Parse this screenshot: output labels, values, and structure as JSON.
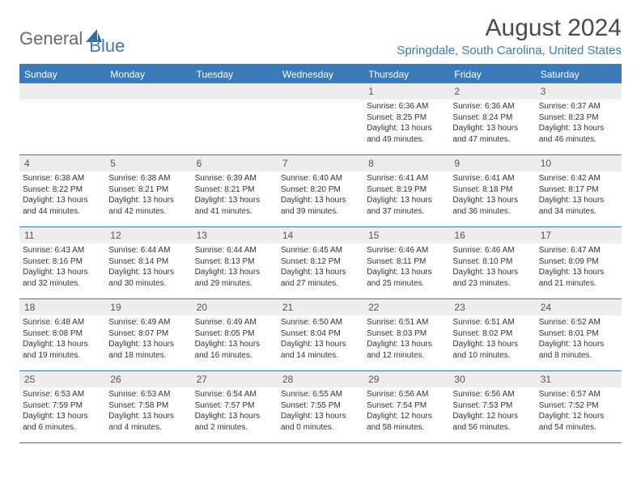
{
  "brand": {
    "part1": "General",
    "part2": "Blue"
  },
  "title": "August 2024",
  "location": "Springdale, South Carolina, United States",
  "colors": {
    "accent": "#3a7ab8",
    "header_bg": "#3a7ab8",
    "daynum_bg": "#ededed",
    "text": "#333333",
    "title_text": "#4a4a4a",
    "logo_grey": "#6a6a6a"
  },
  "weekdays": [
    "Sunday",
    "Monday",
    "Tuesday",
    "Wednesday",
    "Thursday",
    "Friday",
    "Saturday"
  ],
  "weeks": [
    [
      {
        "n": "",
        "sr": "",
        "ss": "",
        "dl": ""
      },
      {
        "n": "",
        "sr": "",
        "ss": "",
        "dl": ""
      },
      {
        "n": "",
        "sr": "",
        "ss": "",
        "dl": ""
      },
      {
        "n": "",
        "sr": "",
        "ss": "",
        "dl": ""
      },
      {
        "n": "1",
        "sr": "Sunrise: 6:36 AM",
        "ss": "Sunset: 8:25 PM",
        "dl": "Daylight: 13 hours and 49 minutes."
      },
      {
        "n": "2",
        "sr": "Sunrise: 6:36 AM",
        "ss": "Sunset: 8:24 PM",
        "dl": "Daylight: 13 hours and 47 minutes."
      },
      {
        "n": "3",
        "sr": "Sunrise: 6:37 AM",
        "ss": "Sunset: 8:23 PM",
        "dl": "Daylight: 13 hours and 46 minutes."
      }
    ],
    [
      {
        "n": "4",
        "sr": "Sunrise: 6:38 AM",
        "ss": "Sunset: 8:22 PM",
        "dl": "Daylight: 13 hours and 44 minutes."
      },
      {
        "n": "5",
        "sr": "Sunrise: 6:38 AM",
        "ss": "Sunset: 8:21 PM",
        "dl": "Daylight: 13 hours and 42 minutes."
      },
      {
        "n": "6",
        "sr": "Sunrise: 6:39 AM",
        "ss": "Sunset: 8:21 PM",
        "dl": "Daylight: 13 hours and 41 minutes."
      },
      {
        "n": "7",
        "sr": "Sunrise: 6:40 AM",
        "ss": "Sunset: 8:20 PM",
        "dl": "Daylight: 13 hours and 39 minutes."
      },
      {
        "n": "8",
        "sr": "Sunrise: 6:41 AM",
        "ss": "Sunset: 8:19 PM",
        "dl": "Daylight: 13 hours and 37 minutes."
      },
      {
        "n": "9",
        "sr": "Sunrise: 6:41 AM",
        "ss": "Sunset: 8:18 PM",
        "dl": "Daylight: 13 hours and 36 minutes."
      },
      {
        "n": "10",
        "sr": "Sunrise: 6:42 AM",
        "ss": "Sunset: 8:17 PM",
        "dl": "Daylight: 13 hours and 34 minutes."
      }
    ],
    [
      {
        "n": "11",
        "sr": "Sunrise: 6:43 AM",
        "ss": "Sunset: 8:16 PM",
        "dl": "Daylight: 13 hours and 32 minutes."
      },
      {
        "n": "12",
        "sr": "Sunrise: 6:44 AM",
        "ss": "Sunset: 8:14 PM",
        "dl": "Daylight: 13 hours and 30 minutes."
      },
      {
        "n": "13",
        "sr": "Sunrise: 6:44 AM",
        "ss": "Sunset: 8:13 PM",
        "dl": "Daylight: 13 hours and 29 minutes."
      },
      {
        "n": "14",
        "sr": "Sunrise: 6:45 AM",
        "ss": "Sunset: 8:12 PM",
        "dl": "Daylight: 13 hours and 27 minutes."
      },
      {
        "n": "15",
        "sr": "Sunrise: 6:46 AM",
        "ss": "Sunset: 8:11 PM",
        "dl": "Daylight: 13 hours and 25 minutes."
      },
      {
        "n": "16",
        "sr": "Sunrise: 6:46 AM",
        "ss": "Sunset: 8:10 PM",
        "dl": "Daylight: 13 hours and 23 minutes."
      },
      {
        "n": "17",
        "sr": "Sunrise: 6:47 AM",
        "ss": "Sunset: 8:09 PM",
        "dl": "Daylight: 13 hours and 21 minutes."
      }
    ],
    [
      {
        "n": "18",
        "sr": "Sunrise: 6:48 AM",
        "ss": "Sunset: 8:08 PM",
        "dl": "Daylight: 13 hours and 19 minutes."
      },
      {
        "n": "19",
        "sr": "Sunrise: 6:49 AM",
        "ss": "Sunset: 8:07 PM",
        "dl": "Daylight: 13 hours and 18 minutes."
      },
      {
        "n": "20",
        "sr": "Sunrise: 6:49 AM",
        "ss": "Sunset: 8:05 PM",
        "dl": "Daylight: 13 hours and 16 minutes."
      },
      {
        "n": "21",
        "sr": "Sunrise: 6:50 AM",
        "ss": "Sunset: 8:04 PM",
        "dl": "Daylight: 13 hours and 14 minutes."
      },
      {
        "n": "22",
        "sr": "Sunrise: 6:51 AM",
        "ss": "Sunset: 8:03 PM",
        "dl": "Daylight: 13 hours and 12 minutes."
      },
      {
        "n": "23",
        "sr": "Sunrise: 6:51 AM",
        "ss": "Sunset: 8:02 PM",
        "dl": "Daylight: 13 hours and 10 minutes."
      },
      {
        "n": "24",
        "sr": "Sunrise: 6:52 AM",
        "ss": "Sunset: 8:01 PM",
        "dl": "Daylight: 13 hours and 8 minutes."
      }
    ],
    [
      {
        "n": "25",
        "sr": "Sunrise: 6:53 AM",
        "ss": "Sunset: 7:59 PM",
        "dl": "Daylight: 13 hours and 6 minutes."
      },
      {
        "n": "26",
        "sr": "Sunrise: 6:53 AM",
        "ss": "Sunset: 7:58 PM",
        "dl": "Daylight: 13 hours and 4 minutes."
      },
      {
        "n": "27",
        "sr": "Sunrise: 6:54 AM",
        "ss": "Sunset: 7:57 PM",
        "dl": "Daylight: 13 hours and 2 minutes."
      },
      {
        "n": "28",
        "sr": "Sunrise: 6:55 AM",
        "ss": "Sunset: 7:55 PM",
        "dl": "Daylight: 13 hours and 0 minutes."
      },
      {
        "n": "29",
        "sr": "Sunrise: 6:56 AM",
        "ss": "Sunset: 7:54 PM",
        "dl": "Daylight: 12 hours and 58 minutes."
      },
      {
        "n": "30",
        "sr": "Sunrise: 6:56 AM",
        "ss": "Sunset: 7:53 PM",
        "dl": "Daylight: 12 hours and 56 minutes."
      },
      {
        "n": "31",
        "sr": "Sunrise: 6:57 AM",
        "ss": "Sunset: 7:52 PM",
        "dl": "Daylight: 12 hours and 54 minutes."
      }
    ]
  ]
}
